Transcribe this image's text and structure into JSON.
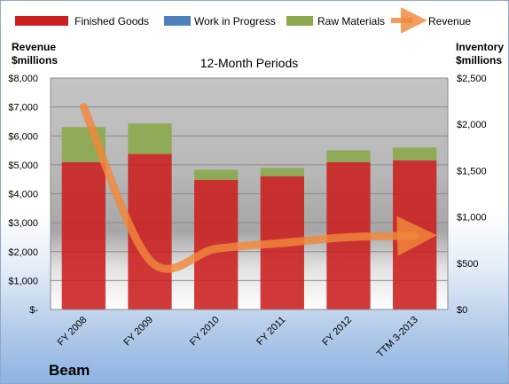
{
  "chart_data": {
    "type": "bar",
    "title": "12-Month Periods",
    "company": "Beam",
    "categories": [
      "FY 2008",
      "FY 2009",
      "FY 2010",
      "FY 2011",
      "FY 2012",
      "TTM 3-2013"
    ],
    "left_axis": {
      "label_line1": "Revenue",
      "label_line2": "$millions",
      "ylim": [
        0,
        8000
      ],
      "ticks": [
        0,
        1000,
        2000,
        3000,
        4000,
        5000,
        6000,
        7000,
        8000
      ],
      "tick_labels": [
        "$-",
        "$1,000",
        "$2,000",
        "$3,000",
        "$4,000",
        "$5,000",
        "$6,000",
        "$7,000",
        "$8,000"
      ]
    },
    "right_axis": {
      "label_line1": "Inventory",
      "label_line2": "$millions",
      "ylim": [
        0,
        2500
      ],
      "ticks": [
        0,
        500,
        1000,
        1500,
        2000,
        2500
      ],
      "tick_labels": [
        "$0",
        "$500",
        "$1,000",
        "$1,500",
        "$2,000",
        "$2,500"
      ]
    },
    "series": [
      {
        "name": "Finished Goods",
        "kind": "stacked-bar",
        "axis": "right",
        "color": "#cc1f1f",
        "values": [
          1590,
          1680,
          1400,
          1440,
          1590,
          1610
        ]
      },
      {
        "name": "Work in Progress",
        "kind": "stacked-bar",
        "axis": "right",
        "color": "#4f81bd",
        "values": [
          0,
          0,
          0,
          0,
          0,
          0
        ]
      },
      {
        "name": "Raw Materials",
        "kind": "stacked-bar",
        "axis": "right",
        "color": "#8aa94a",
        "values": [
          380,
          330,
          110,
          90,
          130,
          140
        ]
      },
      {
        "name": "Revenue",
        "kind": "line",
        "axis": "left",
        "color": "#f0883a",
        "values": [
          7000,
          1700,
          2100,
          2300,
          2500,
          2550
        ]
      }
    ],
    "grid": true,
    "legend": "top"
  }
}
